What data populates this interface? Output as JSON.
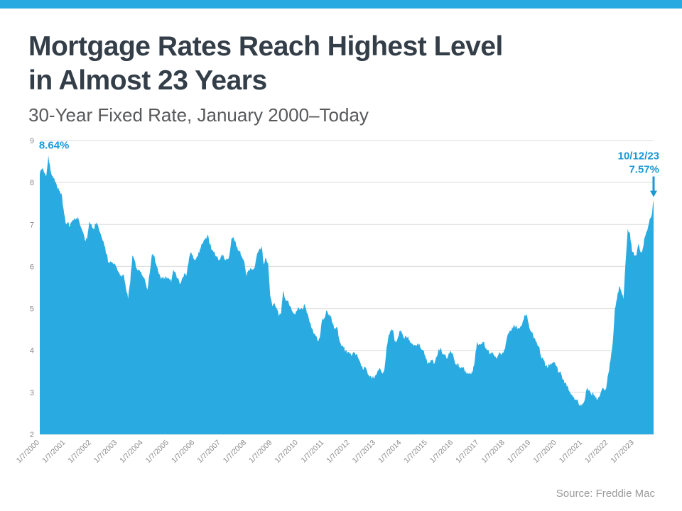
{
  "page": {
    "accent_color": "#29ABE2",
    "annotation_color": "#1899d6",
    "title_line1": "Mortgage Rates Reach Highest Level",
    "title_line2": "in Almost 23 Years",
    "subtitle": "30-Year Fixed Rate, January 2000–Today",
    "source": "Source: Freddie Mac"
  },
  "chart_data": {
    "type": "area",
    "title": "30-Year Fixed Rate, January 2000–Today",
    "series_name": "30-Year Fixed Mortgage Rate (%)",
    "xlabel": "",
    "ylabel": "",
    "ylim": [
      2,
      9
    ],
    "yticks": [
      2,
      3,
      4,
      5,
      6,
      7,
      8,
      9
    ],
    "grid": true,
    "legend": "none",
    "fill_color": "#29ABE2",
    "grid_color": "#dcdcdc",
    "tick_color": "#8a8a8a",
    "x_tick_labels": [
      "1/7/2000",
      "1/7/2001",
      "1/7/2002",
      "1/7/2003",
      "1/7/2004",
      "1/7/2005",
      "1/7/2006",
      "1/7/2007",
      "1/7/2008",
      "1/7/2009",
      "1/7/2010",
      "1/7/2011",
      "1/7/2012",
      "1/7/2013",
      "1/7/2014",
      "1/7/2015",
      "1/7/2016",
      "1/7/2017",
      "1/7/2018",
      "1/7/2019",
      "1/7/2020",
      "1/7/2021",
      "1/7/2022",
      "1/7/2023"
    ],
    "x_start": {
      "year": 2000,
      "month": 1
    },
    "x_interval": "monthly",
    "values": [
      8.21,
      8.33,
      8.24,
      8.15,
      8.64,
      8.29,
      8.15,
      8.03,
      7.91,
      7.8,
      7.75,
      7.38,
      7.03,
      7.05,
      6.95,
      7.08,
      7.15,
      7.16,
      7.13,
      6.95,
      6.82,
      6.62,
      6.66,
      7.07,
      7.0,
      6.89,
      7.01,
      6.99,
      6.81,
      6.65,
      6.49,
      6.29,
      6.09,
      6.11,
      6.07,
      6.05,
      5.92,
      5.84,
      5.75,
      5.81,
      5.48,
      5.23,
      5.63,
      6.26,
      6.15,
      5.95,
      5.93,
      5.88,
      5.74,
      5.64,
      5.45,
      5.83,
      6.27,
      6.29,
      6.06,
      5.87,
      5.75,
      5.72,
      5.73,
      5.75,
      5.71,
      5.63,
      5.93,
      5.86,
      5.72,
      5.58,
      5.7,
      5.82,
      5.77,
      6.07,
      6.33,
      6.27,
      6.15,
      6.25,
      6.32,
      6.51,
      6.6,
      6.68,
      6.76,
      6.52,
      6.4,
      6.36,
      6.24,
      6.14,
      6.22,
      6.29,
      6.16,
      6.18,
      6.26,
      6.66,
      6.7,
      6.57,
      6.38,
      6.38,
      6.21,
      6.1,
      5.76,
      5.92,
      5.97,
      5.92,
      6.04,
      6.32,
      6.43,
      6.48,
      6.04,
      6.2,
      6.09,
      5.29,
      5.05,
      5.13,
      5.0,
      4.81,
      4.86,
      5.42,
      5.22,
      5.19,
      5.06,
      4.95,
      4.88,
      4.93,
      5.03,
      4.99,
      4.97,
      5.1,
      4.89,
      4.74,
      4.56,
      4.43,
      4.35,
      4.23,
      4.3,
      4.71,
      4.76,
      4.95,
      4.84,
      4.84,
      4.64,
      4.51,
      4.55,
      4.27,
      4.11,
      4.07,
      3.99,
      3.96,
      3.92,
      3.89,
      3.95,
      3.91,
      3.8,
      3.68,
      3.55,
      3.6,
      3.5,
      3.38,
      3.35,
      3.35,
      3.41,
      3.53,
      3.57,
      3.45,
      3.54,
      4.07,
      4.37,
      4.46,
      4.49,
      4.19,
      4.26,
      4.46,
      4.43,
      4.3,
      4.34,
      4.34,
      4.19,
      4.16,
      4.13,
      4.12,
      4.16,
      4.04,
      4.0,
      3.86,
      3.67,
      3.71,
      3.77,
      3.67,
      3.84,
      3.98,
      4.05,
      3.91,
      3.89,
      3.8,
      3.94,
      3.96,
      3.87,
      3.66,
      3.69,
      3.61,
      3.6,
      3.57,
      3.44,
      3.44,
      3.46,
      3.47,
      3.77,
      4.2,
      4.15,
      4.17,
      4.2,
      4.05,
      4.01,
      3.9,
      3.97,
      3.88,
      3.81,
      3.9,
      3.92,
      3.95,
      4.03,
      4.33,
      4.44,
      4.47,
      4.59,
      4.57,
      4.53,
      4.55,
      4.63,
      4.83,
      4.87,
      4.64,
      4.46,
      4.37,
      4.27,
      4.14,
      4.07,
      3.8,
      3.77,
      3.62,
      3.61,
      3.69,
      3.7,
      3.72,
      3.62,
      3.47,
      3.45,
      3.31,
      3.23,
      3.16,
      3.02,
      2.94,
      2.89,
      2.83,
      2.77,
      2.68,
      2.74,
      2.81,
      3.08,
      3.06,
      2.96,
      2.98,
      2.87,
      2.84,
      2.9,
      3.07,
      3.07,
      3.1,
      3.45,
      3.76,
      4.17,
      4.98,
      5.23,
      5.52,
      5.41,
      5.22,
      6.11,
      6.9,
      6.81,
      6.36,
      6.27,
      6.26,
      6.54,
      6.34,
      6.43,
      6.71,
      6.84,
      7.07,
      7.2,
      7.57
    ],
    "annotations": {
      "peak_label": "8.64%",
      "latest_date": "10/12/23",
      "latest_value_label": "7.57%"
    }
  }
}
